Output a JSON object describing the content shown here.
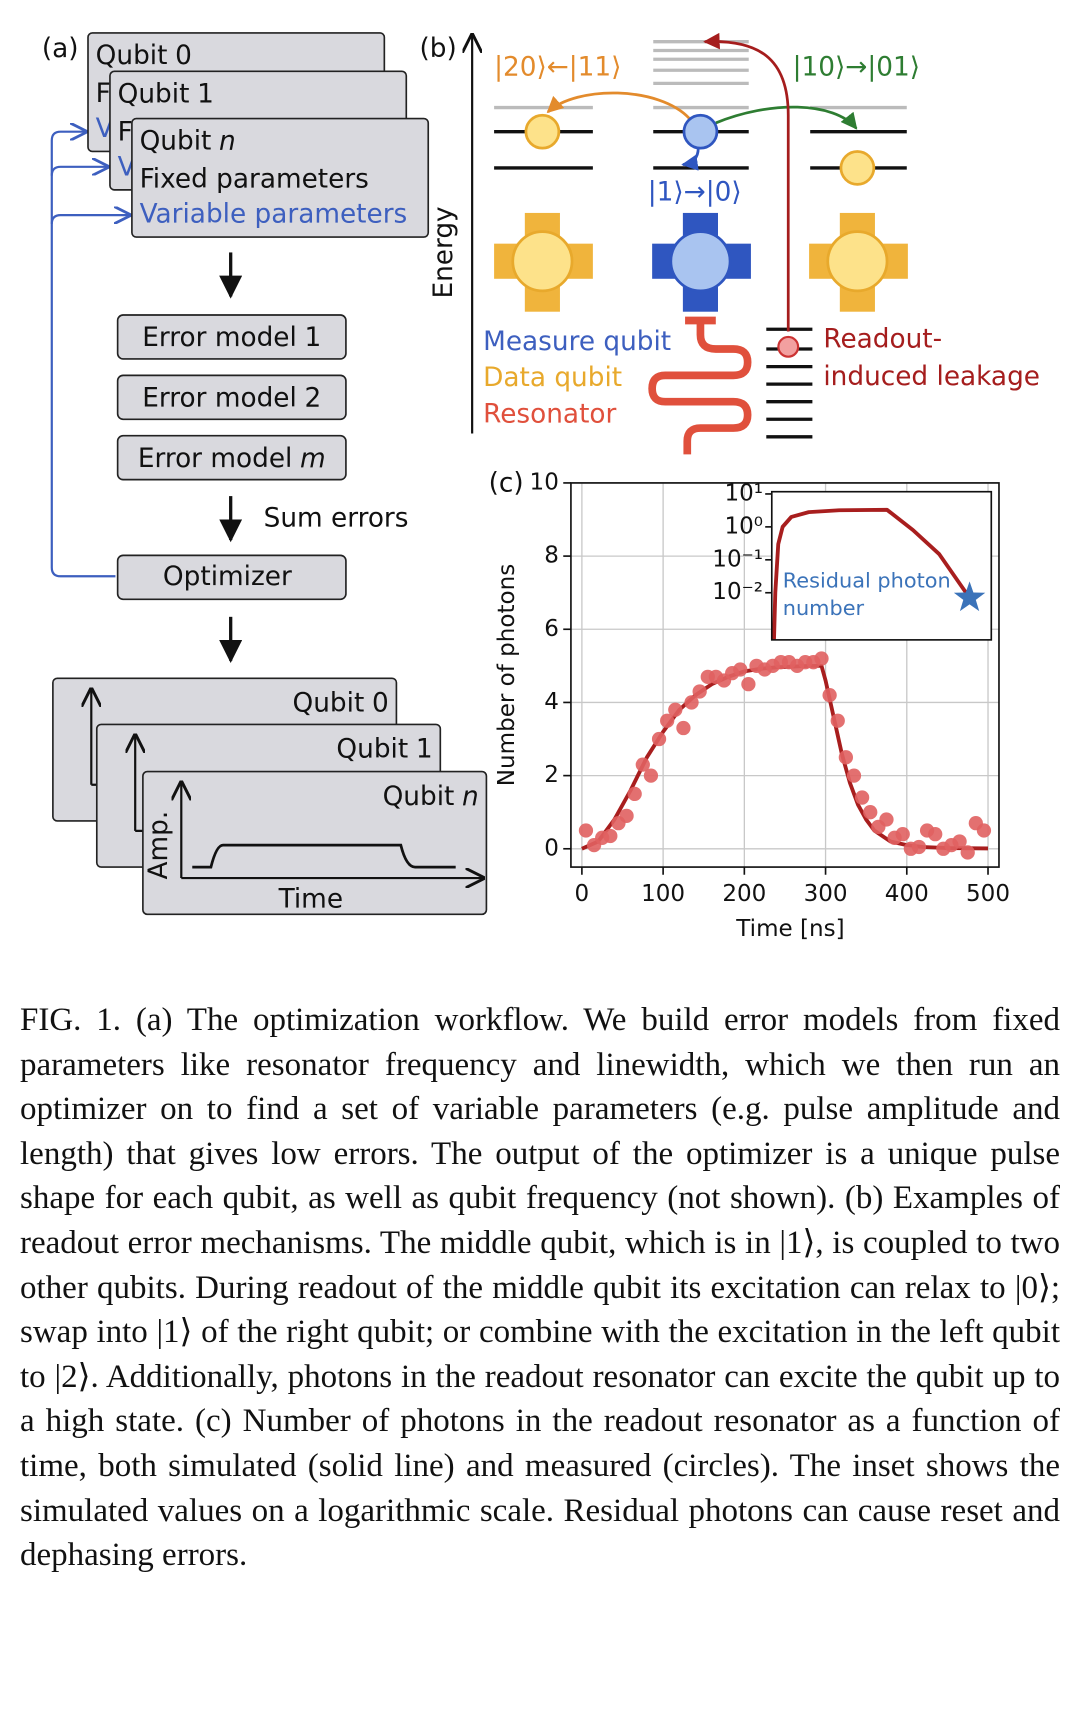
{
  "panel_a": {
    "label": "(a)",
    "parameter_cards": [
      {
        "name": "Qubit",
        "index": "0",
        "fixed": "Fixed parameters",
        "variable": "Variable parameters"
      },
      {
        "name": "Qubit",
        "index": "1",
        "fixed": "Fixed parameters",
        "variable": "Variable parameters"
      },
      {
        "name": "Qubit",
        "index": "n",
        "fixed": "Fixed parameters",
        "variable": "Variable parameters"
      }
    ],
    "error_models": [
      {
        "name": "Error model",
        "index": "1"
      },
      {
        "name": "Error model",
        "index": "2"
      },
      {
        "name": "Error model",
        "index": "m"
      }
    ],
    "sum_label": "Sum errors",
    "optimizer": "Optimizer",
    "pulse_cards": [
      {
        "name": "Qubit",
        "index": "0"
      },
      {
        "name": "Qubit",
        "index": "1"
      },
      {
        "name": "Qubit",
        "index": "n"
      }
    ],
    "amp_label": "Amp.",
    "time_label": "Time"
  },
  "panel_b": {
    "label": "(b)",
    "axis_label": "Energy",
    "swap_left": "|20⟩←|11⟩",
    "swap_right": "|10⟩→|01⟩",
    "relax": "|1⟩→|0⟩",
    "legend": {
      "measure": "Measure qubit",
      "data": "Data qubit",
      "resonator": "Resonator"
    },
    "leakage": [
      "Readout-",
      "induced leakage"
    ]
  },
  "chart_data": {
    "type": "scatter",
    "panel_label": "(c)",
    "xlabel": "Time [ns]",
    "ylabel": "Number of photons",
    "xlim": [
      -13.5,
      513.5
    ],
    "ylim": [
      -0.5,
      10
    ],
    "xticks": [
      0,
      100,
      200,
      300,
      400,
      500
    ],
    "yticks": [
      0,
      2,
      4,
      6,
      8,
      10
    ],
    "grid": true,
    "series": [
      {
        "type": "line",
        "color": "#a81e1e",
        "x": [
          0,
          20,
          40,
          60,
          80,
          100,
          120,
          140,
          160,
          180,
          200,
          220,
          240,
          260,
          280,
          295,
          300,
          310,
          320,
          330,
          340,
          350,
          360,
          380,
          400,
          420,
          450,
          500
        ],
        "values": [
          0,
          0.2,
          0.8,
          1.6,
          2.5,
          3.2,
          3.8,
          4.2,
          4.5,
          4.7,
          4.85,
          4.92,
          4.96,
          4.98,
          5.0,
          5.0,
          4.6,
          3.6,
          2.6,
          1.8,
          1.2,
          0.8,
          0.5,
          0.2,
          0.1,
          0.05,
          0.02,
          0.01
        ]
      },
      {
        "type": "scatter",
        "color": "#e06060",
        "x": [
          5,
          15,
          25,
          35,
          45,
          55,
          65,
          75,
          85,
          95,
          105,
          115,
          125,
          135,
          145,
          155,
          165,
          175,
          185,
          195,
          205,
          215,
          225,
          235,
          245,
          255,
          265,
          275,
          285,
          295,
          305,
          315,
          325,
          335,
          345,
          355,
          365,
          375,
          385,
          395,
          405,
          415,
          425,
          435,
          445,
          455,
          465,
          475,
          485,
          495
        ],
        "values": [
          0.5,
          0.1,
          0.3,
          0.35,
          0.7,
          0.9,
          1.5,
          2.3,
          2.0,
          3.0,
          3.5,
          3.8,
          3.3,
          4.0,
          4.3,
          4.7,
          4.7,
          4.6,
          4.8,
          4.9,
          4.5,
          5.0,
          4.9,
          5.0,
          5.1,
          5.1,
          5.0,
          5.1,
          5.1,
          5.2,
          4.2,
          3.5,
          2.5,
          2.0,
          1.4,
          1.0,
          0.6,
          0.8,
          0.3,
          0.4,
          0.0,
          0.05,
          0.5,
          0.4,
          0.0,
          0.1,
          0.2,
          -0.1,
          0.7,
          0.5
        ]
      }
    ],
    "inset": {
      "type": "line",
      "log_y": true,
      "xlim": [
        -5,
        500
      ],
      "ylim": [
        0.00037,
        11.7
      ],
      "yticks": [
        {
          "value": 10,
          "label": "10¹"
        },
        {
          "value": 1,
          "label": "10⁰"
        },
        {
          "value": 0.1,
          "label": "10⁻¹"
        },
        {
          "value": 0.01,
          "label": "10⁻²"
        }
      ],
      "color": "#a81e1e",
      "x": [
        0,
        3,
        10,
        20,
        40,
        80,
        150,
        260,
        320,
        380,
        450
      ],
      "values": [
        0.00037,
        0.01,
        0.3,
        1.0,
        2.0,
        2.8,
        3.2,
        3.3,
        0.8,
        0.15,
        0.007
      ],
      "annotation": [
        "Residual photon",
        "number"
      ],
      "annotation_color": "#3b73b9",
      "marker": {
        "x": 450,
        "value": 0.007,
        "color": "#3b73b9"
      }
    }
  },
  "caption": "FIG. 1.   (a) The optimization workflow. We build error models from fixed parameters like resonator frequency and linewidth, which we then run an optimizer on to find a set of variable parameters (e.g. pulse amplitude and length) that gives low errors. The output of the optimizer is a unique pulse shape for each qubit, as well as qubit frequency (not shown). (b) Examples of readout error mechanisms. The middle qubit, which is in |1⟩, is coupled to two other qubits. During readout of the middle qubit its excitation can relax to |0⟩; swap into |1⟩ of the right qubit; or combine with the excitation in the left qubit to |2⟩. Additionally, photons in the readout resonator can excite the qubit up to a high state. (c) Number of photons in the readout resonator as a function of time, both simulated (solid line) and measured (circles). The inset shows the simulated values on a logarithmic scale. Residual photons can cause reset and dephasing errors."
}
